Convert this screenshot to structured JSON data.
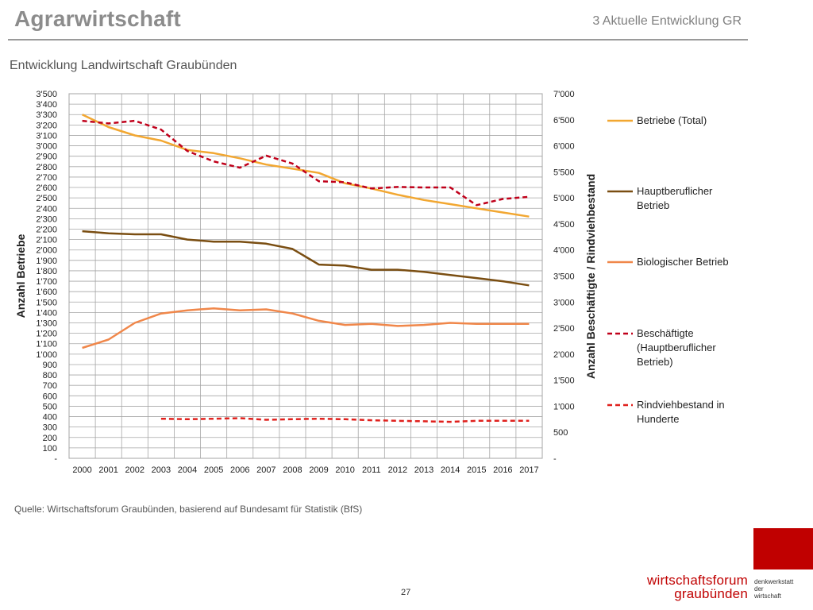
{
  "header": {
    "title": "Agrarwirtschaft",
    "section": "3 Aktuelle Entwicklung GR"
  },
  "footer": {
    "source": "Quelle: Wirtschaftsforum Graubünden, basierend auf Bundesamt für Statistik (BfS)",
    "page_number": "27",
    "brand_line1": "wirtschaftsforum",
    "brand_line2": "graubünden",
    "brand_side_line1": "denkwerkstatt",
    "brand_side_line2": "der",
    "brand_side_line3": "wirtschaft",
    "brand_color": "#c00000"
  },
  "chart_data": {
    "type": "line",
    "title": "Entwicklung Landwirtschaft Graubünden",
    "ylabel": "Anzahl Betriebe",
    "y2label": "Anzahl Beschäftigte / Rindviehbestand",
    "ylim": [
      0,
      3500
    ],
    "y2lim": [
      0,
      7000
    ],
    "yticks": [
      "-",
      "100",
      "200",
      "300",
      "400",
      "500",
      "600",
      "700",
      "800",
      "900",
      "1'000",
      "1'100",
      "1'200",
      "1'300",
      "1'400",
      "1'500",
      "1'600",
      "1'700",
      "1'800",
      "1'900",
      "2'000",
      "2'100",
      "2'200",
      "2'300",
      "2'400",
      "2'500",
      "2'600",
      "2'700",
      "2'800",
      "2'900",
      "3'000",
      "3'100",
      "3'200",
      "3'300",
      "3'400",
      "3'500"
    ],
    "y2ticks": [
      "-",
      "500",
      "1'000",
      "1'500",
      "2'000",
      "2'500",
      "3'000",
      "3'500",
      "4'000",
      "4'500",
      "5'000",
      "5'500",
      "6'000",
      "6'500",
      "7'000"
    ],
    "categories": [
      "2000",
      "2001",
      "2002",
      "2003",
      "2004",
      "2005",
      "2006",
      "2007",
      "2008",
      "2009",
      "2010",
      "2011",
      "2012",
      "2013",
      "2014",
      "2015",
      "2016",
      "2017"
    ],
    "grid": true,
    "legend_position": "right",
    "series": [
      {
        "name": "Betriebe (Total)",
        "axis": "left",
        "color": "#f2a731",
        "dashed": false,
        "values": [
          3300,
          3180,
          3100,
          3050,
          2960,
          2930,
          2880,
          2820,
          2780,
          2740,
          2640,
          2590,
          2530,
          2480,
          2440,
          2400,
          2360,
          2320
        ]
      },
      {
        "name": "Hauptberuflicher Betrieb",
        "axis": "left",
        "color": "#7a4e12",
        "dashed": false,
        "values": [
          2180,
          2160,
          2150,
          2150,
          2100,
          2080,
          2080,
          2060,
          2010,
          1860,
          1850,
          1810,
          1810,
          1790,
          1760,
          1730,
          1700,
          1660
        ]
      },
      {
        "name": "Biologischer Betrieb",
        "axis": "left",
        "color": "#f0874a",
        "dashed": false,
        "values": [
          1060,
          1140,
          1300,
          1390,
          1420,
          1440,
          1420,
          1430,
          1390,
          1320,
          1280,
          1290,
          1270,
          1280,
          1300,
          1290,
          1290,
          1290
        ]
      },
      {
        "name": "Beschäftigte (Hauptberuflicher Betrieb)",
        "axis": "right",
        "color": "#c0001a",
        "dashed": true,
        "values": [
          6480,
          6430,
          6480,
          6310,
          5900,
          5700,
          5580,
          5810,
          5660,
          5320,
          5300,
          5180,
          5210,
          5200,
          5200,
          4860,
          4980,
          5020
        ]
      },
      {
        "name": "Rindviehbestand in Hunderte",
        "axis": "right",
        "color": "#e0201c",
        "dashed": true,
        "values": [
          null,
          null,
          null,
          760,
          750,
          760,
          770,
          740,
          750,
          760,
          750,
          730,
          720,
          710,
          700,
          720,
          720,
          720
        ]
      }
    ]
  }
}
